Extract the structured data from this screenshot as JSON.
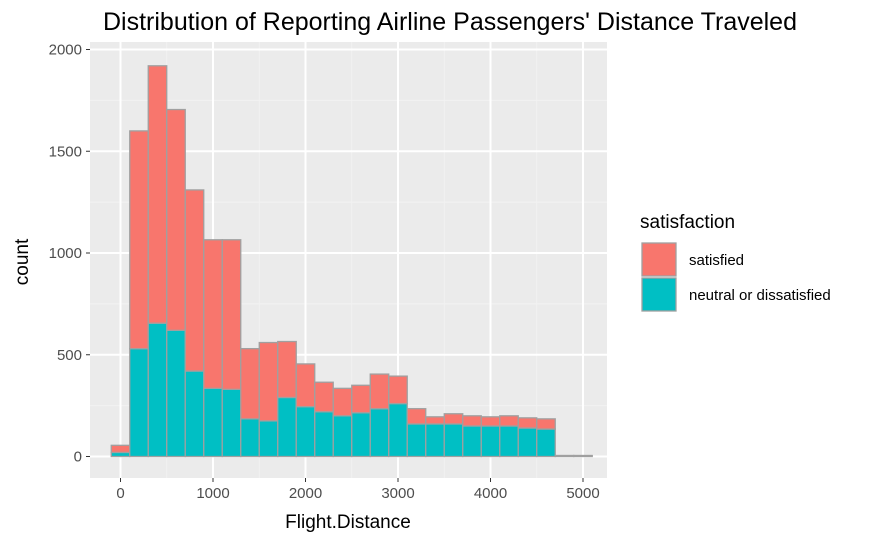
{
  "chart_data": {
    "type": "bar",
    "stacked": true,
    "title": "Distribution of Reporting Airline Passengers' Distance Traveled",
    "xlabel": "Flight.Distance",
    "ylabel": "count",
    "xlim": [
      -200,
      5100
    ],
    "ylim": [
      -100,
      2100
    ],
    "x_ticks": [
      0,
      1000,
      2000,
      3000,
      4000,
      5000
    ],
    "y_ticks": [
      0,
      500,
      1000,
      1500,
      2000
    ],
    "bin_width": 200,
    "bin_centers": [
      0,
      200,
      400,
      600,
      800,
      1000,
      1200,
      1400,
      1600,
      1800,
      2000,
      2200,
      2400,
      2600,
      2800,
      3000,
      3200,
      3400,
      3600,
      3800,
      4000,
      4200,
      4400,
      4600,
      4800,
      5000
    ],
    "series": [
      {
        "name": "neutral or dissatisfied",
        "color": "#00BFC4",
        "values": [
          20,
          530,
          655,
          620,
          420,
          335,
          330,
          185,
          175,
          290,
          245,
          220,
          200,
          215,
          235,
          260,
          160,
          160,
          160,
          150,
          150,
          150,
          140,
          135,
          0,
          0
        ]
      },
      {
        "name": "satisfied",
        "color": "#F8766D",
        "values": [
          35,
          1070,
          1265,
          1085,
          890,
          730,
          735,
          345,
          385,
          275,
          210,
          145,
          135,
          135,
          170,
          135,
          75,
          35,
          50,
          50,
          45,
          50,
          50,
          50,
          5,
          5
        ]
      }
    ],
    "legend": {
      "title": "satisfaction",
      "placement": "right",
      "entries": [
        {
          "label": "satisfied",
          "color": "#F8766D"
        },
        {
          "label": "neutral or dissatisfied",
          "color": "#00BFC4"
        }
      ]
    },
    "colors": {
      "panel_background": "#EBEBEB",
      "grid_major": "#FFFFFF",
      "grid_minor": "#F2F2F2",
      "bar_outline": "#A0A0A0"
    },
    "grid": true
  }
}
